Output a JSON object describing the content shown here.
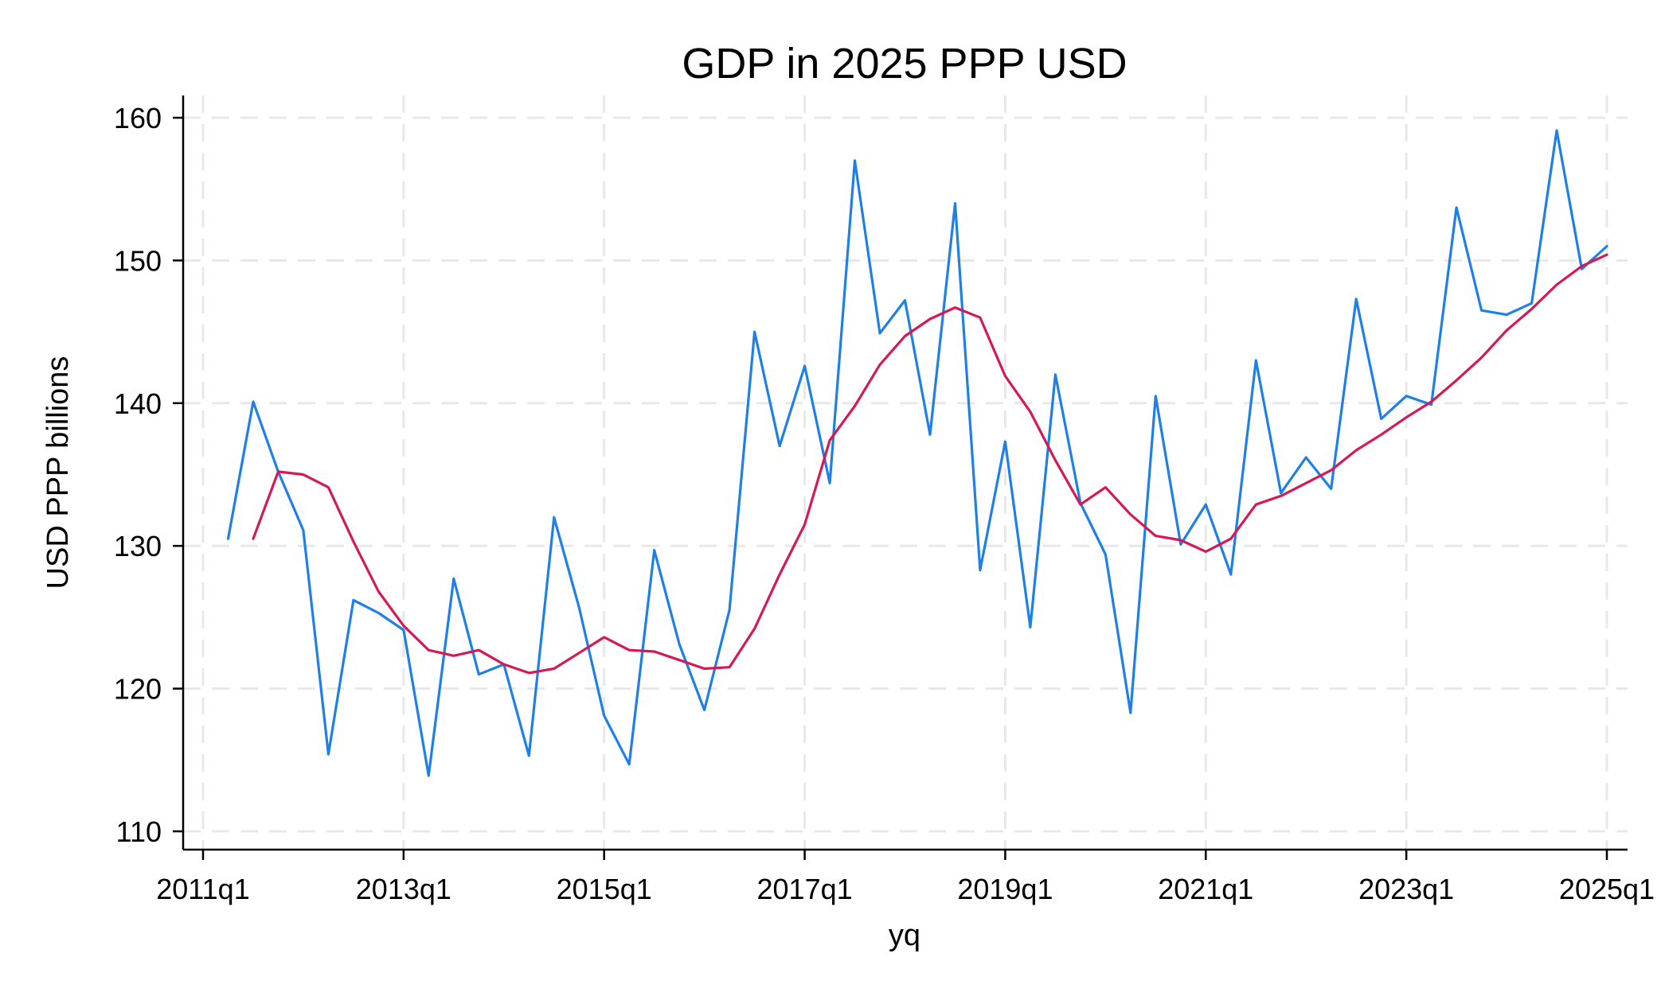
{
  "chart_data": {
    "type": "line",
    "title": "GDP in 2025 PPP USD",
    "xlabel": "yq",
    "ylabel": "USD PPP billions",
    "xlim": [
      "2011q1",
      "2025q1"
    ],
    "ylim": [
      110,
      160
    ],
    "x_ticks": [
      "2011q1",
      "2013q1",
      "2015q1",
      "2017q1",
      "2019q1",
      "2021q1",
      "2023q1",
      "2025q1"
    ],
    "y_ticks": [
      110,
      120,
      130,
      140,
      150,
      160
    ],
    "grid": true,
    "legend": "none",
    "x": [
      "2011q2",
      "2011q3",
      "2011q4",
      "2012q1",
      "2012q2",
      "2012q3",
      "2012q4",
      "2013q1",
      "2013q2",
      "2013q3",
      "2013q4",
      "2014q1",
      "2014q2",
      "2014q3",
      "2014q4",
      "2015q1",
      "2015q2",
      "2015q3",
      "2015q4",
      "2016q1",
      "2016q2",
      "2016q3",
      "2016q4",
      "2017q1",
      "2017q2",
      "2017q3",
      "2017q4",
      "2018q1",
      "2018q2",
      "2018q3",
      "2018q4",
      "2019q1",
      "2019q2",
      "2019q3",
      "2019q4",
      "2020q1",
      "2020q2",
      "2020q3",
      "2020q4",
      "2021q1",
      "2021q2",
      "2021q3",
      "2021q4",
      "2022q1",
      "2022q2",
      "2022q3",
      "2022q4",
      "2023q1",
      "2023q2",
      "2023q3",
      "2023q4",
      "2024q1",
      "2024q2",
      "2024q3",
      "2024q4",
      "2025q1"
    ],
    "series": [
      {
        "color": "#1f7fe8",
        "values": [
          130.5,
          140.1,
          135.2,
          131.1,
          115.4,
          126.2,
          125.3,
          124.1,
          113.9,
          127.7,
          121.0,
          121.7,
          115.3,
          132.0,
          125.7,
          118.1,
          114.7,
          129.7,
          123.1,
          118.5,
          125.5,
          145.0,
          137.0,
          142.6,
          134.4,
          157.0,
          144.9,
          147.2,
          137.8,
          154.0,
          128.3,
          137.3,
          124.3,
          142.0,
          133.0,
          129.4,
          118.3,
          140.5,
          130.1,
          132.9,
          128.0,
          143.0,
          133.7,
          136.2,
          134.0,
          147.3,
          138.9,
          140.5,
          139.9,
          153.7,
          146.5,
          146.2,
          147.0,
          159.1,
          149.4,
          151.0
        ]
      },
      {
        "color": "#d41a55",
        "values": [
          null,
          130.5,
          135.2,
          135.0,
          134.1,
          130.3,
          126.8,
          124.4,
          122.7,
          122.3,
          122.7,
          121.7,
          121.1,
          121.4,
          122.5,
          123.6,
          122.7,
          122.6,
          122.0,
          121.4,
          121.5,
          124.2,
          128.0,
          131.5,
          137.4,
          139.8,
          142.7,
          144.7,
          145.9,
          146.7,
          146.0,
          141.9,
          139.4,
          136.0,
          132.9,
          134.1,
          132.2,
          130.7,
          130.4,
          129.6,
          130.5,
          132.9,
          133.5,
          134.4,
          135.3,
          136.7,
          137.8,
          139.0,
          140.1,
          141.6,
          143.2,
          145.1,
          146.6,
          148.3,
          149.6,
          150.4
        ]
      }
    ]
  }
}
